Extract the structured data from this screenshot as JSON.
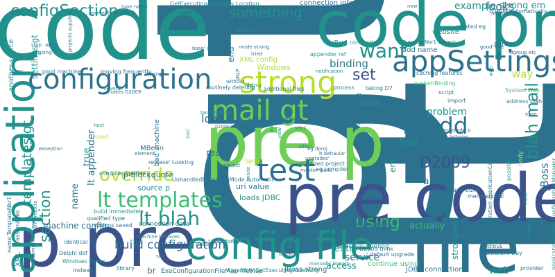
{
  "palette": {
    "dark_teal": "#2c728e",
    "teal": "#21918c",
    "green": "#3bbb75",
    "light_green": "#6ece58",
    "yellow_green": "#b5de2b",
    "purple": "#472d7b",
    "dark_purple": "#440154",
    "indigo": "#3b528b"
  },
  "words": [
    {
      "text": "gt",
      "color": "dark_teal"
    },
    {
      "text": "lt",
      "color": "dark_teal"
    },
    {
      "text": "code",
      "color": "teal"
    },
    {
      "text": "code pre",
      "color": "teal"
    },
    {
      "text": "pre code",
      "color": "indigo"
    },
    {
      "text": "p pre",
      "color": "indigo"
    },
    {
      "text": "file",
      "color": "dark_teal"
    },
    {
      "text": "pre p",
      "color": "light_green"
    },
    {
      "text": "config file",
      "color": "teal"
    },
    {
      "text": "application",
      "color": "teal"
    },
    {
      "text": "configuration",
      "color": "dark_teal"
    },
    {
      "text": "appSettings",
      "color": "dark_teal"
    },
    {
      "text": "test",
      "color": "dark_teal"
    },
    {
      "text": "mail gt",
      "color": "light_green"
    },
    {
      "text": "strong",
      "color": "yellow_green"
    },
    {
      "text": "want",
      "color": "teal"
    },
    {
      "text": "lt add",
      "color": "dark_teal"
    },
    {
      "text": "configSection",
      "color": "teal"
    },
    {
      "text": "something",
      "color": "teal"
    },
    {
      "text": "blah mail",
      "color": "teal"
    },
    {
      "text": "override",
      "color": "yellow_green"
    },
    {
      "text": "lt templates",
      "color": "green"
    },
    {
      "text": "lt blah",
      "color": "teal"
    },
    {
      "text": "build configuration",
      "color": "dark_teal"
    },
    {
      "text": "templates gt",
      "color": "teal"
    },
    {
      "text": "section",
      "color": "teal"
    },
    {
      "text": "set",
      "color": "indigo"
    },
    {
      "text": "using",
      "color": "green"
    },
    {
      "text": "D2009",
      "color": "indigo"
    },
    {
      "text": "looks",
      "color": "dark_teal"
    },
    {
      "text": "example",
      "color": "teal"
    },
    {
      "text": "strong em",
      "color": "teal"
    },
    {
      "text": "binding",
      "color": "dark_teal"
    },
    {
      "text": "configure",
      "color": "dark_teal"
    },
    {
      "text": "load",
      "color": "dark_teal"
    },
    {
      "text": "server",
      "color": "dark_teal"
    },
    {
      "text": "problem",
      "color": "teal"
    },
    {
      "text": "find",
      "color": "teal"
    },
    {
      "text": "able",
      "color": "dark_teal"
    },
    {
      "text": "service",
      "color": "dark_teal"
    },
    {
      "text": "entry",
      "color": "teal"
    },
    {
      "text": "access",
      "color": "teal"
    },
    {
      "text": "web",
      "color": "teal"
    },
    {
      "text": "way",
      "color": "yellow_green"
    },
    {
      "text": "work",
      "color": "teal"
    },
    {
      "text": "end",
      "color": "dark_teal"
    },
    {
      "text": "name",
      "color": "dark_teal"
    },
    {
      "text": "true",
      "color": "teal"
    },
    {
      "text": "read",
      "color": "dark_teal"
    },
    {
      "text": "br",
      "color": "dark_teal"
    },
    {
      "text": "em",
      "color": "teal"
    },
    {
      "text": "JBoss",
      "color": "dark_teal"
    },
    {
      "text": "actually",
      "color": "green"
    },
    {
      "text": "output directory",
      "color": "dark_teal"
    },
    {
      "text": "machine config",
      "color": "dark_teal"
    },
    {
      "text": "lt appender",
      "color": "dark_teal"
    },
    {
      "text": "settings gt",
      "color": "teal"
    },
    {
      "text": "source p",
      "color": "teal"
    },
    {
      "text": "p blockquote",
      "color": "dark_teal"
    },
    {
      "text": "uri value",
      "color": "dark_teal"
    },
    {
      "text": "loads JDBC",
      "color": "teal"
    },
    {
      "text": "proc StartInfo",
      "color": "dark_teal"
    },
    {
      "text": "implementing",
      "color": "dark_teal"
    },
    {
      "text": "XML config",
      "color": "yellow_green"
    },
    {
      "text": "Windows",
      "color": "yellow_green"
    },
    {
      "text": "connection information",
      "color": "dark_teal"
    },
    {
      "text": "strong em",
      "color": "teal"
    },
    {
      "text": "connection data",
      "color": "dark_teal"
    },
    {
      "text": "continue using",
      "color": "green"
    },
    {
      "text": "JDBC connection",
      "color": "dark_teal"
    },
    {
      "text": "ExeConfigurationFileMap fileMap",
      "color": "dark_teal"
    },
    {
      "text": "JBoss strong",
      "color": "dark_teal"
    },
    {
      "text": "connection pooling",
      "color": "teal"
    },
    {
      "text": "IIS",
      "color": "dark_teal"
    },
    {
      "text": "blah hotmail",
      "color": "dark_teal"
    },
    {
      "text": "caching features",
      "color": "dark_teal"
    },
    {
      "text": "add name",
      "color": "dark_teal"
    },
    {
      "text": "customBinding",
      "color": "green"
    },
    {
      "text": "address blah",
      "color": "dark_teal"
    },
    {
      "text": "taking D7",
      "color": "dark_teal"
    },
    {
      "text": "process",
      "color": "teal"
    },
    {
      "text": "MBean",
      "color": "dark_teal"
    },
    {
      "text": "another source",
      "color": "teal"
    },
    {
      "text": "XML",
      "color": "dark_teal"
    },
    {
      "text": "rest",
      "color": "dark_teal"
    },
    {
      "text": "portion",
      "color": "dark_teal"
    },
    {
      "text": "website",
      "color": "teal"
    },
    {
      "text": "D2009 automatically",
      "color": "dark_teal"
    },
    {
      "text": "GetExecutingAssembly Location",
      "color": "teal"
    },
    {
      "text": "pooling caching",
      "color": "dark_teal"
    },
    {
      "text": "applicationConfig GetSection",
      "color": "dark_teal"
    },
    {
      "text": "assembly qualified",
      "color": "dark_teal"
    },
    {
      "text": "compiler options",
      "color": "dark_teal"
    },
    {
      "text": "build immediately",
      "color": "teal"
    },
    {
      "text": "qualified type",
      "color": "dark_teal"
    },
    {
      "text": "options saved",
      "color": "dark_teal"
    },
    {
      "text": "identical D7",
      "color": "dark_teal"
    },
    {
      "text": "Delphi dof",
      "color": "dark_teal"
    },
    {
      "text": "Windows Forms",
      "color": "teal"
    },
    {
      "text": "instead",
      "color": "dark_teal"
    },
    {
      "text": "library",
      "color": "dark_teal"
    },
    {
      "text": "modify",
      "color": "dark_teal"
    },
    {
      "text": "Assembly GetExecutingAssembly",
      "color": "teal"
    },
    {
      "text": "manually import",
      "color": "teal"
    },
    {
      "text": "D2009 think",
      "color": "dark_teal"
    },
    {
      "text": "default upgrade",
      "color": "dark_teal"
    },
    {
      "text": "ASP NET",
      "color": "dark_teal"
    },
    {
      "text": "upgraded project",
      "color": "dark_teal"
    },
    {
      "text": "eg compiler",
      "color": "dark_teal"
    },
    {
      "text": "UnhandledExceptionMode Automatic",
      "color": "dark_teal"
    },
    {
      "text": "release' Looking",
      "color": "dark_teal"
    },
    {
      "text": "default build",
      "color": "dark_teal"
    },
    {
      "text": "membership",
      "color": "dark_teal"
    },
    {
      "text": "provider",
      "color": "dark_teal"
    },
    {
      "text": "tedious",
      "color": "dark_teal"
    },
    {
      "text": "different way",
      "color": "dark_teal"
    },
    {
      "text": "GAC",
      "color": "dark_teal"
    },
    {
      "text": "moving frequently",
      "color": "dark_teal"
    },
    {
      "text": "good machine",
      "color": "dark_teal"
    },
    {
      "text": "routinely deleting",
      "color": "dark_teal"
    },
    {
      "text": "additional files",
      "color": "dark_teal"
    },
    {
      "text": "makes D2009",
      "color": "dark_teal"
    },
    {
      "text": "several",
      "color": "teal"
    },
    {
      "text": "System Web",
      "color": "green"
    },
    {
      "text": "script",
      "color": "dark_teal"
    },
    {
      "text": "import",
      "color": "dark_teal"
    },
    {
      "text": "notification",
      "color": "teal"
    },
    {
      "text": "appender ref",
      "color": "teal"
    },
    {
      "text": "JBoss connection",
      "color": "teal"
    },
    {
      "text": "TemplateNbr1 subject",
      "color": "dark_teal"
    },
    {
      "text": "dgroup etc",
      "color": "dark_teal"
    },
    {
      "text": "created eg",
      "color": "dark_teal"
    },
    {
      "text": "might now",
      "color": "dark_teal"
    },
    {
      "text": "type name",
      "color": "dark_teal"
    },
    {
      "text": "now",
      "color": "dark_teal"
    },
    {
      "text": "exception",
      "color": "dark_teal"
    },
    {
      "text": "error",
      "color": "dark_teal"
    },
    {
      "text": "host",
      "color": "teal"
    },
    {
      "text": "used",
      "color": "yellow_green"
    },
    {
      "text": "sites",
      "color": "teal"
    },
    {
      "text": "affect",
      "color": "teal"
    },
    {
      "text": "lt behavior",
      "color": "dark_teal"
    },
    {
      "text": "master' build",
      "color": "dark_teal"
    },
    {
      "text": "upgrades'",
      "color": "dark_teal"
    },
    {
      "text": "Spring",
      "color": "yellow_green"
    },
    {
      "text": "project",
      "color": "dark_teal"
    },
    {
      "text": "tried",
      "color": "dark_teal"
    },
    {
      "text": "without",
      "color": "dark_teal"
    },
    {
      "text": "trying",
      "color": "dark_teal"
    },
    {
      "text": "base' debug",
      "color": "dark_teal"
    },
    {
      "text": "stop",
      "color": "dark_teal"
    },
    {
      "text": "apart",
      "color": "dark_teal"
    },
    {
      "text": "going",
      "color": "dark_teal"
    },
    {
      "text": "although",
      "color": "dark_teal"
    },
    {
      "text": "options copied",
      "color": "dark_teal"
    },
    {
      "text": "listed",
      "color": "dark_teal"
    },
    {
      "text": "eg dproj",
      "color": "dark_teal"
    },
    {
      "text": "machine behaves",
      "color": "teal"
    },
    {
      "text": "element",
      "color": "dark_teal"
    },
    {
      "text": "bad' machine",
      "color": "dark_teal"
    },
    {
      "text": "two identical",
      "color": "teal"
    },
    {
      "text": "D2009 additional etc",
      "color": "dark_teal"
    },
    {
      "text": "Configuration applicationConfig",
      "color": "dark_teal"
    },
    {
      "text": "applicationConfig ConfigurationManager",
      "color": "teal"
    },
    {
      "text": "name TemplateNbr1",
      "color": "dark_teal"
    },
    {
      "text": "assemblies",
      "color": "dark_teal"
    },
    {
      "text": "automatically makes",
      "color": "dark_teal"
    },
    {
      "text": "D7 projects",
      "color": "teal"
    },
    {
      "text": "projects supplied",
      "color": "dark_teal"
    },
    {
      "text": "web",
      "color": "dark_teal"
    },
    {
      "text": "ease",
      "color": "dark_teal"
    },
    {
      "text": "possible",
      "color": "teal"
    },
    {
      "text": "body",
      "color": "yellow_green"
    },
    {
      "text": "value",
      "color": "teal"
    },
    {
      "text": "might",
      "color": "teal"
    },
    {
      "text": "see",
      "color": "teal"
    },
    {
      "text": "tool",
      "color": "teal"
    },
    {
      "text": "nice",
      "color": "teal"
    },
    {
      "text": "view",
      "color": "teal"
    },
    {
      "text": "port",
      "color": "teal"
    },
    {
      "text": "node",
      "color": "teal"
    },
    {
      "text": "debug",
      "color": "teal"
    },
    {
      "text": "mode strong",
      "color": "dark_teal"
    },
    {
      "text": "JNLP",
      "color": "dark_teal"
    },
    {
      "text": "good' one",
      "color": "dark_teal"
    },
    {
      "text": "anyone",
      "color": "teal"
    },
    {
      "text": "tomcat",
      "color": "teal"
    },
    {
      "text": "blockquote p",
      "color": "dark_teal"
    },
    {
      "text": "creating",
      "color": "dark_teal"
    },
    {
      "text": "time data",
      "color": "teal"
    },
    {
      "text": "href",
      "color": "teal"
    },
    {
      "text": "ConfigurationManager OpenMappedExe",
      "color": "dark_teal"
    },
    {
      "text": "ConfigurationManager GetSection",
      "color": "dark_teal"
    }
  ]
}
